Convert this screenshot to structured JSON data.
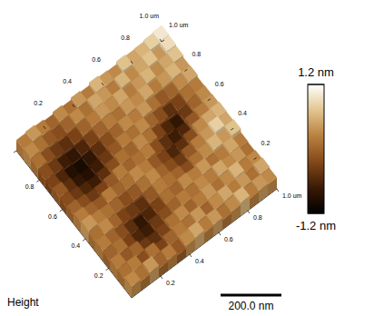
{
  "chart_data": {
    "type": "surface",
    "title": "Height",
    "xlim": [
      0,
      1.0
    ],
    "ylim": [
      0,
      1.0
    ],
    "xticks": [
      0.2,
      0.4,
      0.6,
      0.8,
      {
        "value": 1.0,
        "label": "1.0 um"
      }
    ],
    "yticks": [
      0.2,
      0.4,
      0.6,
      0.8,
      {
        "value": 1.0,
        "label": "1.0 um"
      }
    ],
    "cells": [
      [
        0.3,
        0.1,
        0.4,
        0.0,
        0.2,
        -0.1,
        0.3,
        0.5,
        0.2,
        0.4,
        0.1,
        0.3,
        0.6,
        0.2,
        0.4,
        0.3
      ],
      [
        0.1,
        0.2,
        -0.2,
        0.1,
        -0.3,
        0.0,
        0.2,
        0.1,
        0.4,
        0.0,
        0.3,
        0.5,
        0.2,
        0.4,
        0.1,
        0.5
      ],
      [
        0.2,
        -0.1,
        0.0,
        -0.4,
        -0.5,
        -0.3,
        0.1,
        0.3,
        0.0,
        0.2,
        0.4,
        0.1,
        0.3,
        0.6,
        0.2,
        0.3
      ],
      [
        0.0,
        0.1,
        -0.3,
        -0.6,
        -0.7,
        -0.4,
        -0.2,
        0.0,
        0.2,
        0.1,
        0.3,
        0.2,
        0.5,
        0.3,
        0.4,
        0.1
      ],
      [
        0.2,
        0.0,
        -0.2,
        -0.5,
        -0.8,
        -0.6,
        -0.3,
        0.1,
        0.0,
        0.3,
        0.2,
        0.4,
        0.1,
        0.2,
        0.5,
        0.2
      ],
      [
        0.1,
        0.3,
        0.0,
        -0.3,
        -0.4,
        -0.5,
        -0.1,
        0.2,
        0.1,
        0.0,
        -0.2,
        0.1,
        0.3,
        0.6,
        0.4,
        0.7
      ],
      [
        0.4,
        0.2,
        0.1,
        0.0,
        -0.2,
        -0.1,
        0.1,
        0.3,
        0.0,
        -0.2,
        -0.4,
        -0.1,
        0.2,
        0.4,
        0.8,
        0.5
      ],
      [
        0.2,
        0.0,
        -0.1,
        0.2,
        0.0,
        0.1,
        0.3,
        0.2,
        -0.1,
        -0.3,
        -0.6,
        -0.5,
        -0.2,
        0.3,
        0.5,
        0.6
      ],
      [
        0.0,
        -0.2,
        -0.4,
        -0.3,
        -0.1,
        0.2,
        0.0,
        0.1,
        0.2,
        -0.2,
        -0.5,
        -0.7,
        -0.6,
        -0.1,
        0.2,
        0.4
      ],
      [
        -0.2,
        -0.4,
        -0.6,
        -0.7,
        -0.5,
        -0.2,
        0.1,
        0.0,
        0.3,
        0.1,
        -0.3,
        -0.6,
        -0.8,
        -0.4,
        0.0,
        0.3
      ],
      [
        -0.1,
        -0.5,
        -0.8,
        -0.9,
        -0.7,
        -0.4,
        -0.1,
        0.2,
        0.1,
        0.3,
        0.0,
        -0.2,
        -0.5,
        -0.3,
        0.1,
        0.2
      ],
      [
        -0.3,
        -0.6,
        -0.9,
        -1.0,
        -0.8,
        -0.5,
        -0.2,
        0.0,
        0.3,
        0.2,
        0.4,
        0.1,
        -0.1,
        0.0,
        0.3,
        0.5
      ],
      [
        -0.2,
        -0.4,
        -0.7,
        -0.8,
        -0.6,
        -0.3,
        0.0,
        0.2,
        0.1,
        0.4,
        0.3,
        0.5,
        0.2,
        0.4,
        0.6,
        0.4
      ],
      [
        0.1,
        -0.2,
        -0.4,
        -0.5,
        -0.3,
        0.0,
        0.2,
        0.4,
        0.3,
        0.5,
        0.2,
        0.4,
        0.6,
        0.3,
        0.5,
        0.7
      ],
      [
        0.3,
        0.1,
        -0.1,
        -0.2,
        0.0,
        0.3,
        0.1,
        0.5,
        0.4,
        0.2,
        0.6,
        0.3,
        0.5,
        0.7,
        0.4,
        0.9
      ],
      [
        0.2,
        0.4,
        0.2,
        0.0,
        0.3,
        0.1,
        0.4,
        0.2,
        0.6,
        0.4,
        0.3,
        0.7,
        0.5,
        0.6,
        0.8,
        1.0
      ]
    ],
    "colorbar": {
      "range": [
        -1.2,
        1.2
      ],
      "ticks": [
        {
          "value": 1.2,
          "label": "1.2 nm"
        },
        {
          "value": -1.2,
          "label": "-1.2 nm"
        }
      ]
    },
    "scale_bar": {
      "value": 0.2,
      "label": "200.0 nm"
    }
  }
}
